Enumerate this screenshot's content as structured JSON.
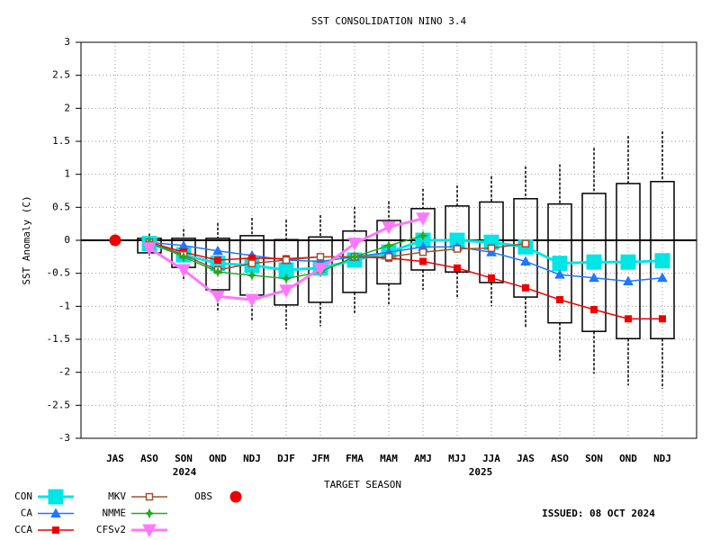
{
  "chart_data": {
    "type": "line",
    "title": "SST CONSOLIDATION NINO 3.4",
    "y_label": "SST Anomaly (C)",
    "x_label": "TARGET SEASON",
    "annotations": [
      "2024",
      "2025",
      "ISSUED: 08 OCT 2024"
    ],
    "categories": [
      "JAS",
      "ASO",
      "SON",
      "OND",
      "NDJ",
      "DJF",
      "JFM",
      "FMA",
      "MAM",
      "AMJ",
      "MJJ",
      "JJA",
      "JAS",
      "ASO",
      "SON",
      "OND",
      "NDJ"
    ],
    "ylim": [
      -3,
      3
    ],
    "yticks": [
      3,
      2.5,
      2,
      1.5,
      1,
      0.5,
      0,
      -0.5,
      -1,
      -1.5,
      -2,
      -2.5,
      -3
    ],
    "grid": true,
    "boxes": {
      "whisker_high": [
        null,
        0.1,
        0.17,
        0.26,
        0.34,
        0.31,
        0.38,
        0.51,
        0.59,
        0.78,
        0.83,
        0.97,
        1.12,
        1.15,
        1.4,
        1.58,
        1.65
      ],
      "box_high": [
        null,
        0.03,
        0.03,
        0.03,
        0.07,
        0.01,
        0.05,
        0.14,
        0.3,
        0.48,
        0.52,
        0.58,
        0.63,
        0.55,
        0.71,
        0.86,
        0.89
      ],
      "box_low": [
        null,
        -0.19,
        -0.41,
        -0.75,
        -0.83,
        -0.98,
        -0.94,
        -0.79,
        -0.66,
        -0.45,
        -0.48,
        -0.64,
        -0.86,
        -1.25,
        -1.38,
        -1.49,
        -1.49
      ],
      "whisker_low": [
        null,
        -0.27,
        -0.6,
        -1.09,
        -1.21,
        -1.35,
        -1.3,
        -1.12,
        -0.97,
        -0.75,
        -0.86,
        -1.0,
        -1.31,
        -1.82,
        -2.02,
        -2.2,
        -2.25
      ]
    },
    "series": [
      {
        "name": "CON",
        "color": "#00e5e5",
        "marker": "square-big",
        "values": [
          null,
          -0.05,
          -0.22,
          -0.35,
          -0.38,
          -0.45,
          -0.42,
          -0.3,
          -0.18,
          0.0,
          0.0,
          -0.03,
          -0.1,
          -0.35,
          -0.33,
          -0.33,
          -0.31
        ]
      },
      {
        "name": "CA",
        "color": "#1e78ff",
        "marker": "triangle",
        "values": [
          null,
          -0.03,
          -0.08,
          -0.16,
          -0.23,
          -0.3,
          -0.32,
          -0.25,
          -0.18,
          -0.1,
          -0.1,
          -0.18,
          -0.32,
          -0.52,
          -0.57,
          -0.62,
          -0.57
        ]
      },
      {
        "name": "CCA",
        "color": "#ee0000",
        "marker": "square",
        "values": [
          null,
          -0.03,
          -0.18,
          -0.3,
          -0.27,
          -0.28,
          -0.25,
          -0.25,
          -0.27,
          -0.32,
          -0.42,
          -0.57,
          -0.72,
          -0.9,
          -1.05,
          -1.19,
          -1.19
        ]
      },
      {
        "name": "MKV",
        "color": "#a0522d",
        "marker": "open-square",
        "values": [
          null,
          -0.03,
          -0.22,
          -0.45,
          -0.35,
          -0.3,
          -0.25,
          -0.25,
          -0.25,
          -0.18,
          -0.13,
          -0.12,
          -0.05,
          null,
          null,
          null,
          null
        ]
      },
      {
        "name": "NMME",
        "color": "#22aa22",
        "marker": "star",
        "values": [
          null,
          -0.03,
          -0.25,
          -0.48,
          -0.53,
          -0.58,
          -0.48,
          -0.25,
          -0.08,
          0.07,
          null,
          null,
          null,
          null,
          null,
          null,
          null
        ]
      },
      {
        "name": "CFSv2",
        "color": "#ff77ff",
        "marker": "down-triangle",
        "values": [
          null,
          -0.12,
          -0.45,
          -0.85,
          -0.9,
          -0.76,
          -0.43,
          -0.05,
          0.2,
          0.33,
          null,
          null,
          null,
          null,
          null,
          null,
          null
        ]
      },
      {
        "name": "OBS",
        "color": "#ee0000",
        "marker": "circle",
        "values": [
          0.0,
          null,
          null,
          null,
          null,
          null,
          null,
          null,
          null,
          null,
          null,
          null,
          null,
          null,
          null,
          null,
          null
        ]
      }
    ]
  }
}
